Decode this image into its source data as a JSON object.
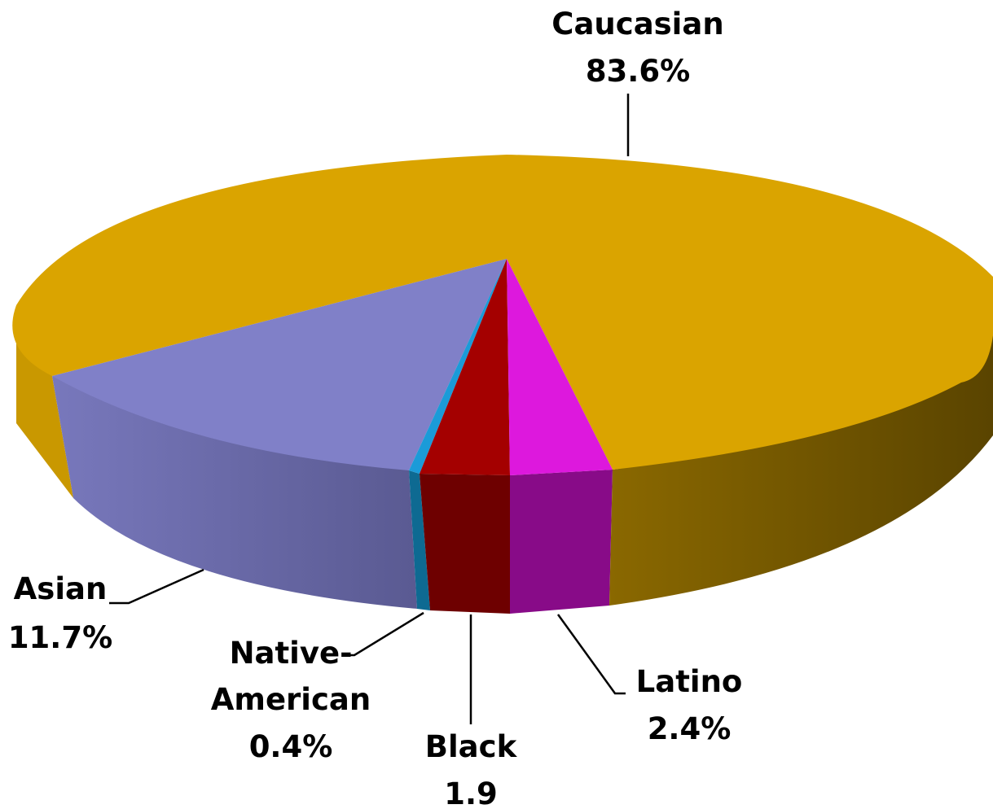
{
  "chart_data": {
    "type": "pie",
    "style": "3d",
    "title": "",
    "slices": [
      {
        "name": "Caucasian",
        "label_line1": "Caucasian",
        "label_line2": "83.6%",
        "value": 83.6,
        "color": "#DAA400"
      },
      {
        "name": "Latino",
        "label_line1": "Latino",
        "label_line2": "2.4%",
        "value": 2.4,
        "color": "#DD18DD"
      },
      {
        "name": "Black",
        "label_line1": "Black",
        "label_line2": "1.9",
        "value": 1.9,
        "color": "#A40000"
      },
      {
        "name": "Native American",
        "label_line1": "Native-",
        "label_line2": "American",
        "label_line3": "0.4%",
        "value": 0.4,
        "color": "#1B9BD8"
      },
      {
        "name": "Asian",
        "label_line1": "Asian",
        "label_line2": "11.7%",
        "value": 11.7,
        "color": "#8080C8"
      }
    ]
  }
}
